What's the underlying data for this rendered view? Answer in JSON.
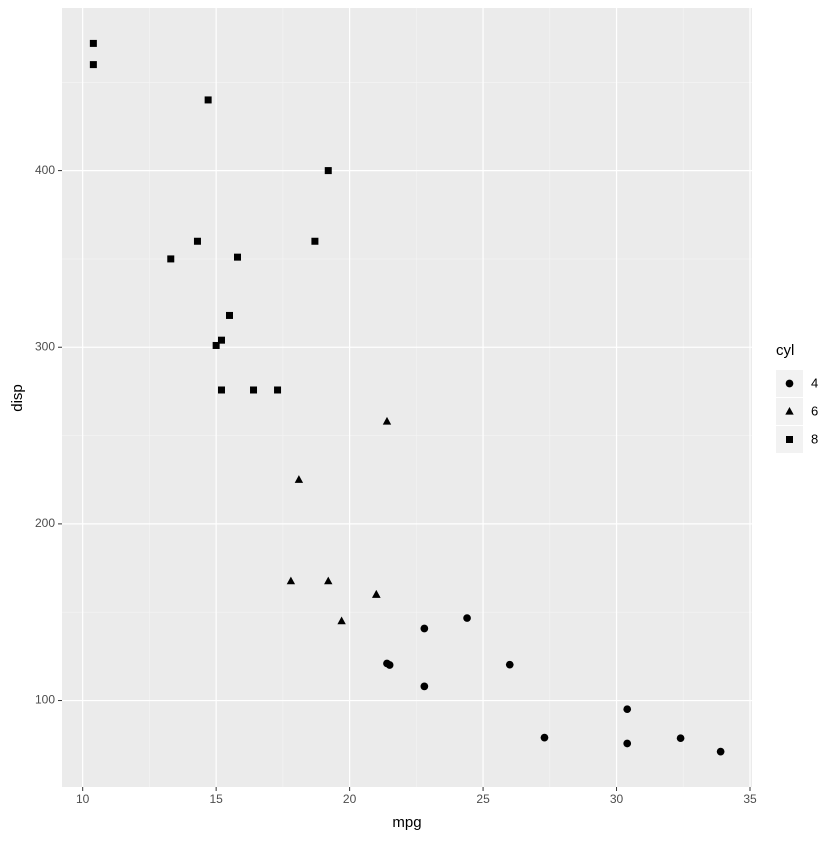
{
  "chart_data": {
    "type": "scatter",
    "x_label": "mpg",
    "y_label": "disp",
    "legend_title": "cyl",
    "xlim": [
      9.225,
      35.075
    ],
    "ylim": [
      51.055,
      492.045
    ],
    "xticks": [
      10,
      15,
      20,
      25,
      30,
      35
    ],
    "yticks": [
      100,
      200,
      300,
      400
    ],
    "x_minor_breaks": [
      12.5,
      17.5,
      22.5,
      27.5,
      32.5
    ],
    "y_minor_breaks": [
      150,
      250,
      350,
      450
    ],
    "grid": true,
    "legend_position": "right",
    "series": [
      {
        "name": "4",
        "shape": "circle",
        "color": "#000000",
        "x": [
          22.8,
          24.4,
          22.8,
          32.4,
          30.4,
          33.9,
          21.5,
          27.3,
          26.0,
          30.4,
          21.4
        ],
        "values": [
          108,
          146.7,
          140.8,
          78.7,
          75.7,
          71.1,
          120.1,
          79,
          120.3,
          95.1,
          121
        ]
      },
      {
        "name": "6",
        "shape": "triangle",
        "color": "#000000",
        "x": [
          21.0,
          21.0,
          21.4,
          18.1,
          19.2,
          17.8,
          19.7
        ],
        "values": [
          160,
          160,
          258,
          225,
          167.6,
          167.6,
          145
        ]
      },
      {
        "name": "8",
        "shape": "square",
        "color": "#000000",
        "x": [
          18.7,
          14.3,
          16.4,
          17.3,
          15.2,
          10.4,
          10.4,
          14.7,
          15.5,
          15.2,
          13.3,
          19.2,
          15.8,
          15.0
        ],
        "values": [
          360,
          360,
          275.8,
          275.8,
          275.8,
          472,
          460,
          440,
          318,
          304,
          350,
          400,
          351,
          301
        ]
      }
    ]
  }
}
